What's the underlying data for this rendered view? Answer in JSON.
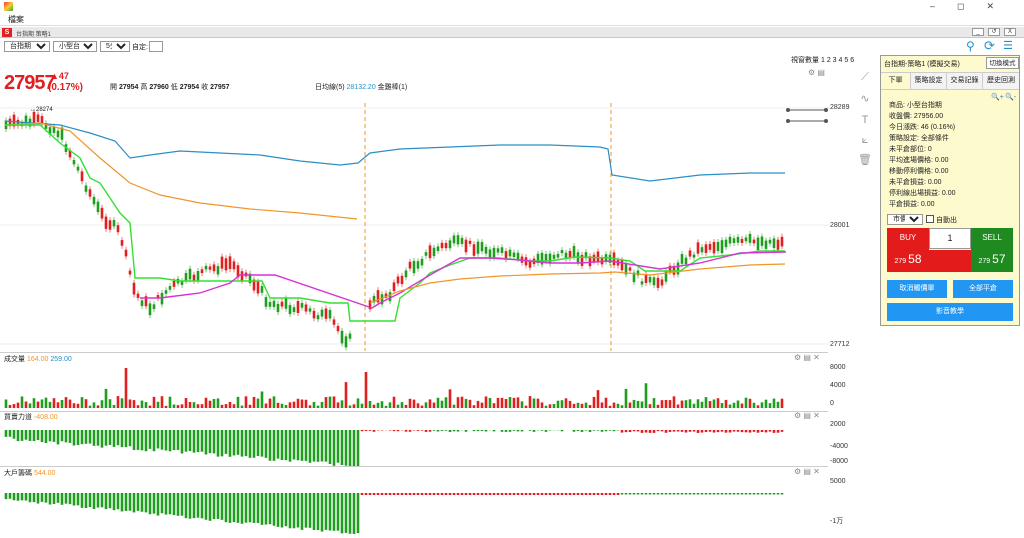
{
  "app": {
    "menu_label": "檔案"
  },
  "window": {
    "tab_label": "台指期 策略1",
    "controls": [
      "_",
      "↺",
      "X"
    ]
  },
  "toolbar": {
    "symbol": "台指期",
    "contract": "小型台指期",
    "interval": "5分K",
    "custom_label": "自定:"
  },
  "quote": {
    "price": "27957",
    "change": "▲47",
    "change_pct": "(0.17%)",
    "open_label": "開",
    "open": "27954",
    "high_label": "高",
    "high": "27960",
    "low_label": "低",
    "low": "27954",
    "close_label": "收",
    "close": "27957",
    "ma_label": "日均線(5)",
    "ma_value": "28132.20",
    "gold_label": "金雞棒(1)",
    "peak_label": "←28274"
  },
  "window_count": {
    "label": "視窗數量",
    "options": [
      "1",
      "2",
      "3",
      "4",
      "5",
      "6"
    ]
  },
  "main_axis": {
    "top": "28289",
    "mid": "28001",
    "bottom": "27712"
  },
  "volume": {
    "title": "成交量",
    "v1": "164.00",
    "v2": "259.00",
    "ticks": [
      "8000",
      "4000",
      "0"
    ]
  },
  "force": {
    "title": "買賣力道",
    "v1": "-408.00",
    "ticks": [
      "2000",
      "-4000",
      "-8000"
    ]
  },
  "big": {
    "title": "大戶籌碼",
    "v1": "544.00",
    "ticks": [
      "5000",
      "-1万"
    ]
  },
  "side": {
    "header": "台指期-策略1 (模擬交易)",
    "mode_button": "切換模式",
    "tabs": [
      "下單",
      "策略設定",
      "交易記錄",
      "歷史回測"
    ],
    "zoom": [
      "🔍+",
      "🔍-"
    ],
    "info": [
      "商品: 小型台指期",
      "收盤價: 27956.00",
      "今日漲跌: 46 (0.16%)",
      "策略設定: 全部條件",
      "未平倉部位: 0",
      "平均進場價格: 0.00",
      "移動停利價格: 0.00",
      "未平倉損益: 0.00",
      "停利線出場損益: 0.00",
      "平倉損益: 0.00"
    ],
    "order_type": "市價單",
    "auto_label": "自動出",
    "buy_label": "BUY",
    "sell_label": "SELL",
    "qty": "1",
    "buy_price_main": "279",
    "buy_price_tail": "58",
    "sell_price_main": "279",
    "sell_price_tail": "57",
    "cancel_all": "取消觸價單",
    "close_all": "全部平倉",
    "video": "影音教學"
  },
  "colors": {
    "up": "#e02020",
    "down": "#1f9d1f",
    "line_blue": "#2a8fc4",
    "line_orange": "#f0962a",
    "line_green": "#33e033",
    "line_magenta": "#d633d6",
    "side_bg": "#fdfacd",
    "btn_blue": "#2196f3"
  }
}
